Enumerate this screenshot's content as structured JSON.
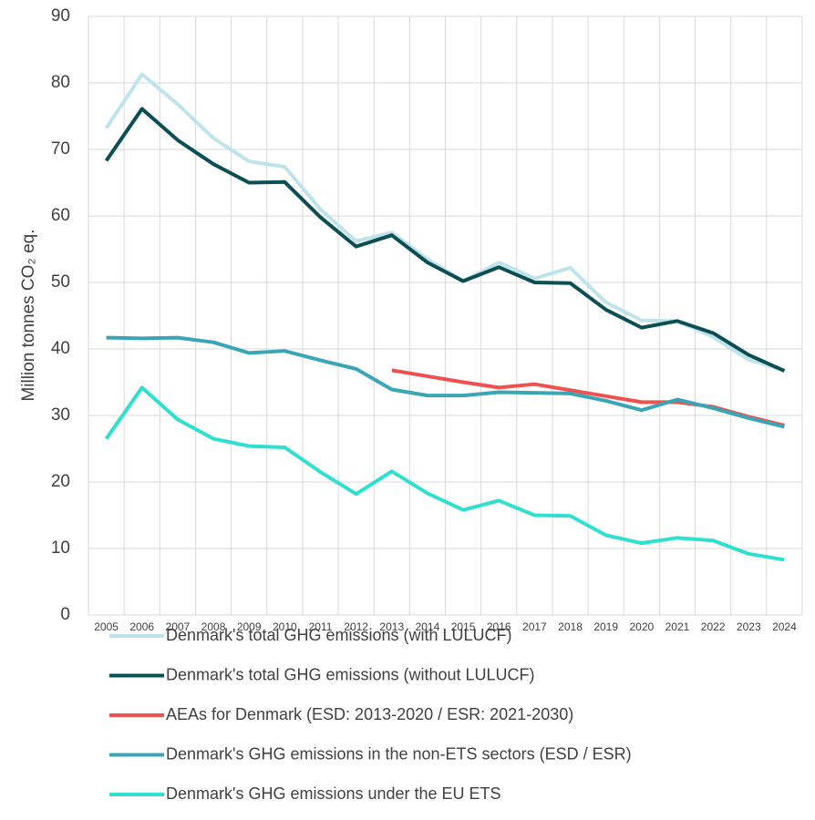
{
  "chart_data": {
    "type": "line",
    "y_label": "Million tonnes CO₂ eq.",
    "categories": [
      "2005",
      "2006",
      "2007",
      "2008",
      "2009",
      "2010",
      "2011",
      "2012",
      "2013",
      "2014",
      "2015",
      "2016",
      "2017",
      "2018",
      "2019",
      "2020",
      "2021",
      "2022",
      "2023",
      "2024"
    ],
    "series": [
      {
        "name": "Denmark's total GHG emissions (with LULUCF)",
        "color": "#bfe3ea",
        "values": [
          73.2,
          81.3,
          76.8,
          71.7,
          68.2,
          67.4,
          61,
          56.2,
          57.5,
          53.5,
          50.2,
          53,
          50.6,
          52.2,
          47,
          44.3,
          44.2,
          41.8,
          38.4,
          36.8
        ]
      },
      {
        "name": "Denmark's total GHG emissions (without LULUCF)",
        "color": "#0b4f55",
        "values": [
          68.3,
          76.1,
          71.4,
          67.8,
          65,
          65.1,
          59.8,
          55.4,
          57.1,
          53,
          50.2,
          52.3,
          50,
          49.9,
          45.9,
          43.2,
          44.2,
          42.4,
          39.1,
          36.7
        ]
      },
      {
        "name": "AEAs for Denmark (ESD: 2013-2020 / ESR: 2021-2030)",
        "color": "#f0504f",
        "values": [
          null,
          null,
          null,
          null,
          null,
          null,
          null,
          null,
          36.8,
          35.9,
          35,
          34.2,
          34.7,
          33.8,
          32.9,
          32,
          32,
          31.3,
          29.8,
          28.5
        ]
      },
      {
        "name": "Denmark's GHG emissions in the non-ETS sectors (ESD / ESR)",
        "color": "#3aa6b5",
        "values": [
          41.7,
          41.6,
          41.7,
          41,
          39.4,
          39.7,
          38.3,
          37,
          33.9,
          33,
          33,
          33.5,
          33.4,
          33.3,
          32.2,
          30.8,
          32.4,
          31.1,
          29.6,
          28.3
        ]
      },
      {
        "name": "Denmark's GHG emissions under the EU ETS",
        "color": "#2fe0cf",
        "values": [
          26.5,
          34.2,
          29.4,
          26.5,
          25.4,
          25.2,
          21.5,
          18.2,
          21.6,
          18.3,
          15.8,
          17.2,
          15,
          14.9,
          12,
          10.8,
          11.6,
          11.2,
          9.2,
          8.3
        ]
      }
    ],
    "ylim": [
      0,
      90
    ],
    "yticks": [
      0,
      10,
      20,
      30,
      40,
      50,
      60,
      70,
      80,
      90
    ],
    "grid": true
  }
}
